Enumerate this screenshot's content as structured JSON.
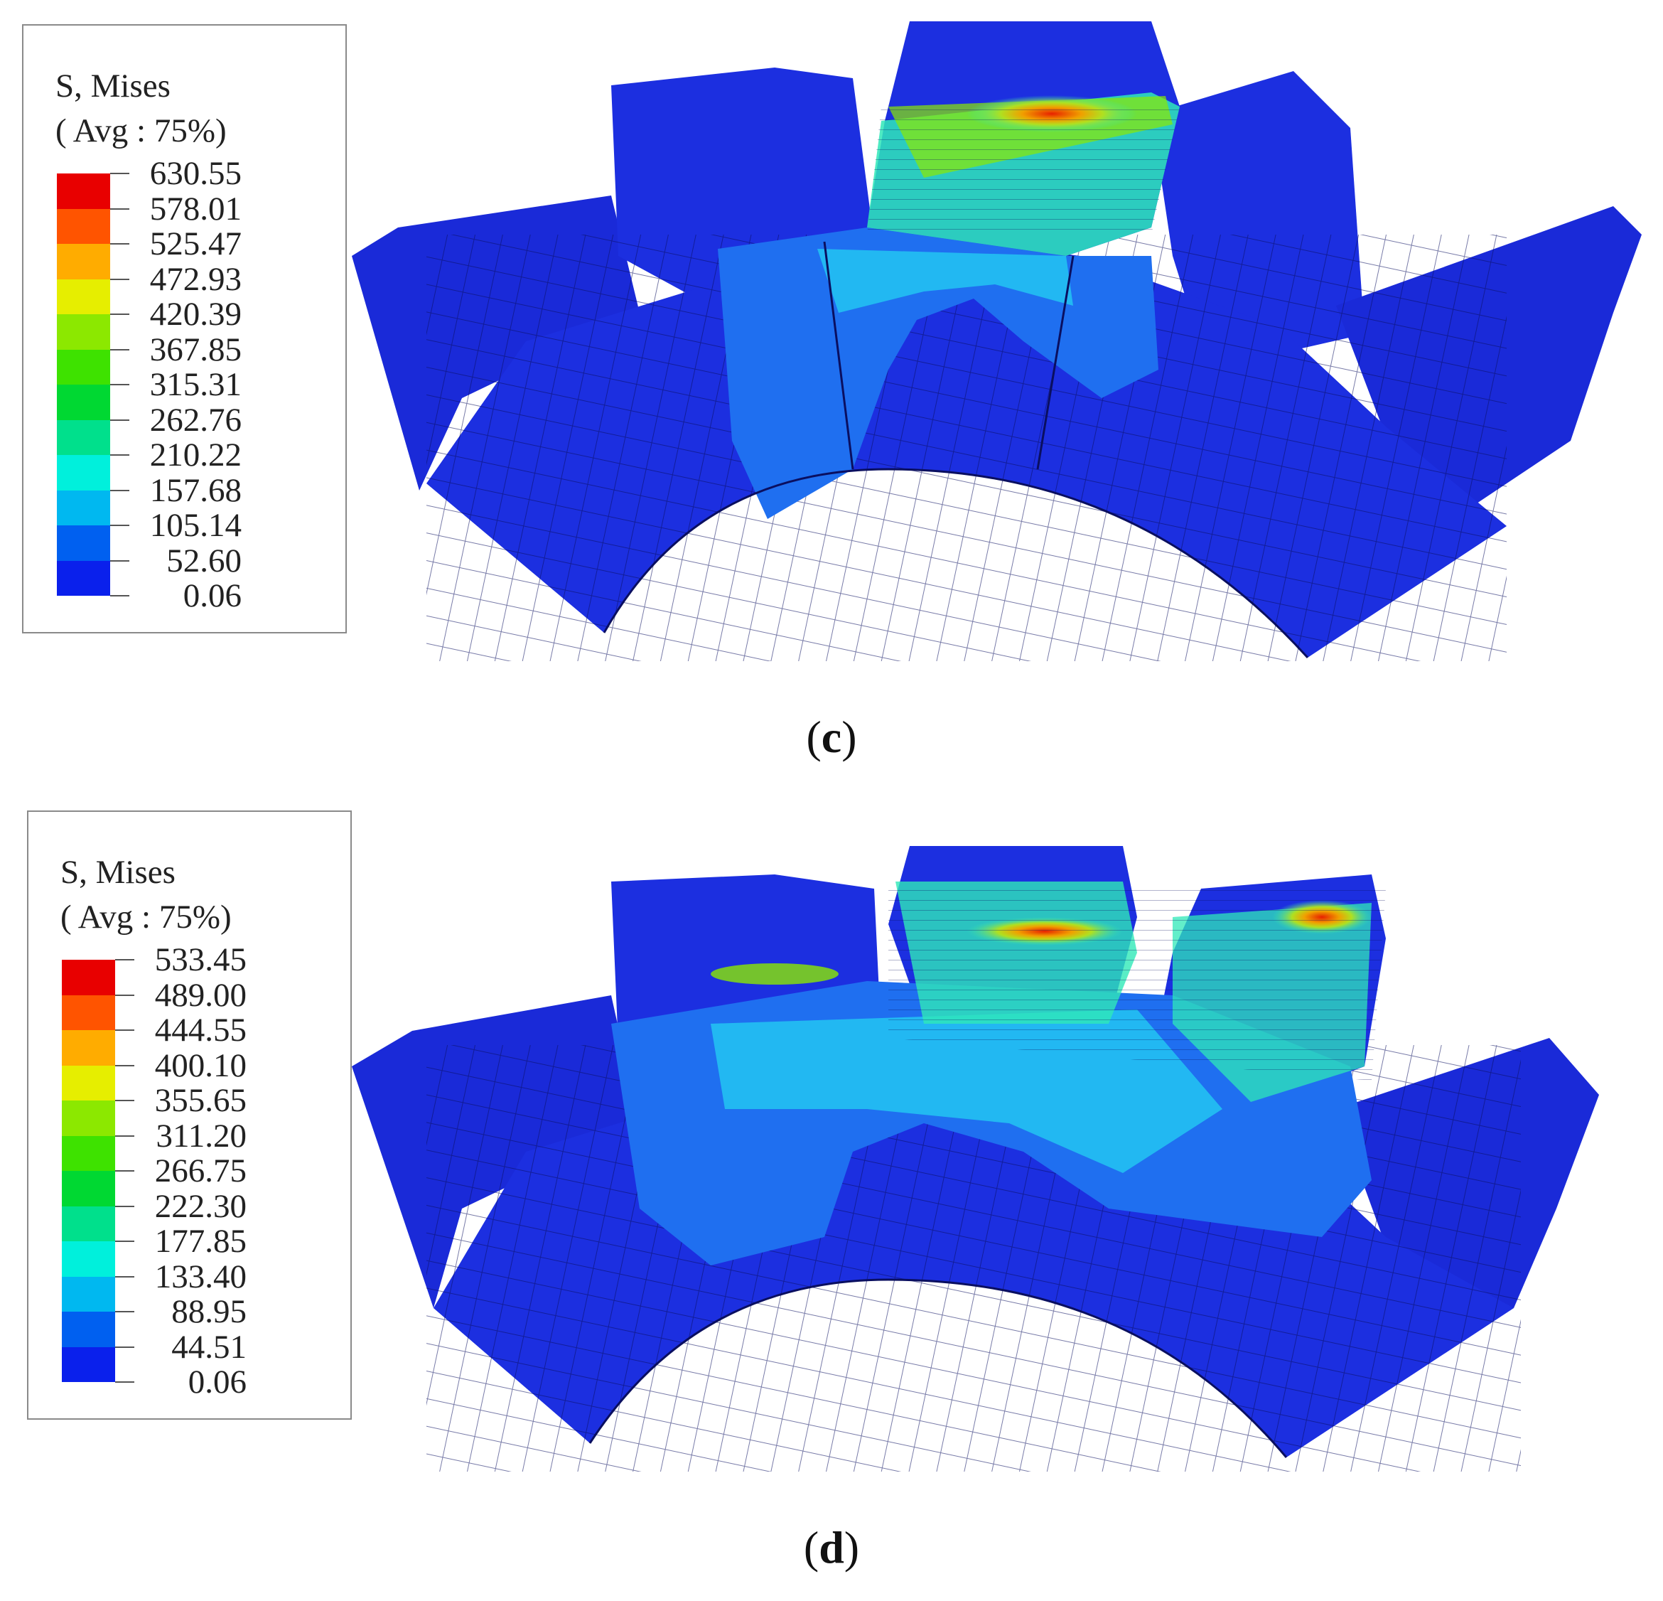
{
  "panels": [
    {
      "id": "c",
      "caption_open": "(",
      "caption_letter": "c",
      "caption_close": ")",
      "legend": {
        "title_line1": "S, Mises",
        "title_line2": "( Avg : 75%)",
        "values": [
          "630.55",
          "578.01",
          "525.47",
          "472.93",
          "420.39",
          "367.85",
          "315.31",
          "262.76",
          "210.22",
          "157.68",
          "105.14",
          "52.60",
          "0.06"
        ]
      }
    },
    {
      "id": "d",
      "caption_open": "(",
      "caption_letter": "d",
      "caption_close": ")",
      "legend": {
        "title_line1": "S, Mises",
        "title_line2": "( Avg : 75%)",
        "values": [
          "533.45",
          "489.00",
          "444.55",
          "400.10",
          "355.65",
          "311.20",
          "266.75",
          "222.30",
          "177.85",
          "133.40",
          "88.95",
          "44.51",
          "0.06"
        ]
      }
    }
  ],
  "colormap": [
    "#e80000",
    "#ff5400",
    "#ffac00",
    "#e6ee00",
    "#8ce800",
    "#3ee200",
    "#00d832",
    "#00e08c",
    "#00f0dc",
    "#00b8f0",
    "#0060f0",
    "#0a20ec"
  ],
  "fe_colors": {
    "base": "#1c2fe0",
    "low": "#1f6ff0",
    "mid": "#22b8f2",
    "high": "#2fe8b8",
    "peak": "#c8e81a",
    "max": "#e82000",
    "mesh": "#0a0f60"
  }
}
